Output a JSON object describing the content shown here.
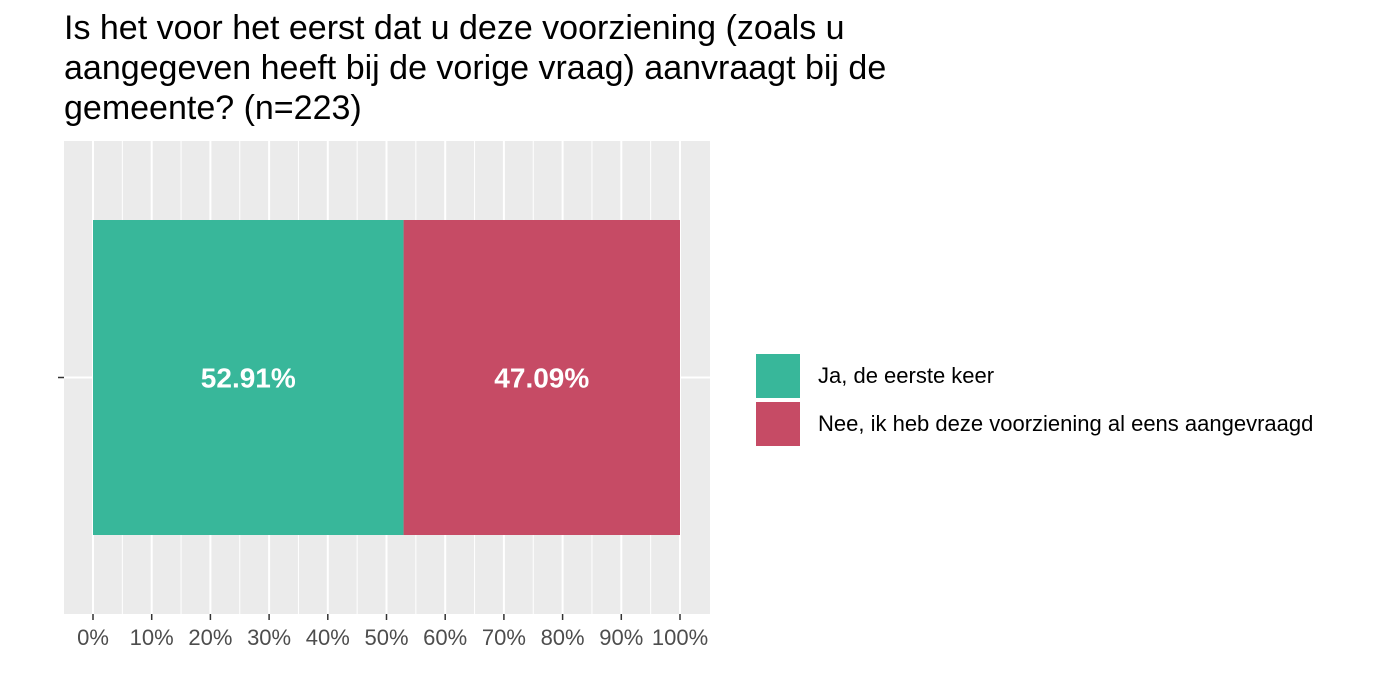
{
  "chart_data": {
    "type": "bar",
    "orientation": "horizontal",
    "stacked": true,
    "title": "Is het voor het eerst dat u deze voorziening (zoals u aangegeven heeft bij de vorige vraag) aanvraagt bij de gemeente? (n=223)",
    "categories": [
      ""
    ],
    "series": [
      {
        "name": "Ja, de eerste keer",
        "values": [
          52.91
        ],
        "label": "52.91%",
        "color": "#38B79A"
      },
      {
        "name": "Nee, ik heb deze voorziening al eens aangevraagd",
        "values": [
          47.09
        ],
        "label": "47.09%",
        "color": "#C64B65"
      }
    ],
    "xlim": [
      0,
      100
    ],
    "x_ticks": [
      "0%",
      "10%",
      "20%",
      "30%",
      "40%",
      "50%",
      "60%",
      "70%",
      "80%",
      "90%",
      "100%"
    ],
    "xlabel": "",
    "ylabel": "",
    "grid": true,
    "legend_position": "right",
    "colors": {
      "panel_background": "#EBEBEB",
      "grid": "#FFFFFF",
      "tick_label": "#4D4D4D"
    }
  }
}
